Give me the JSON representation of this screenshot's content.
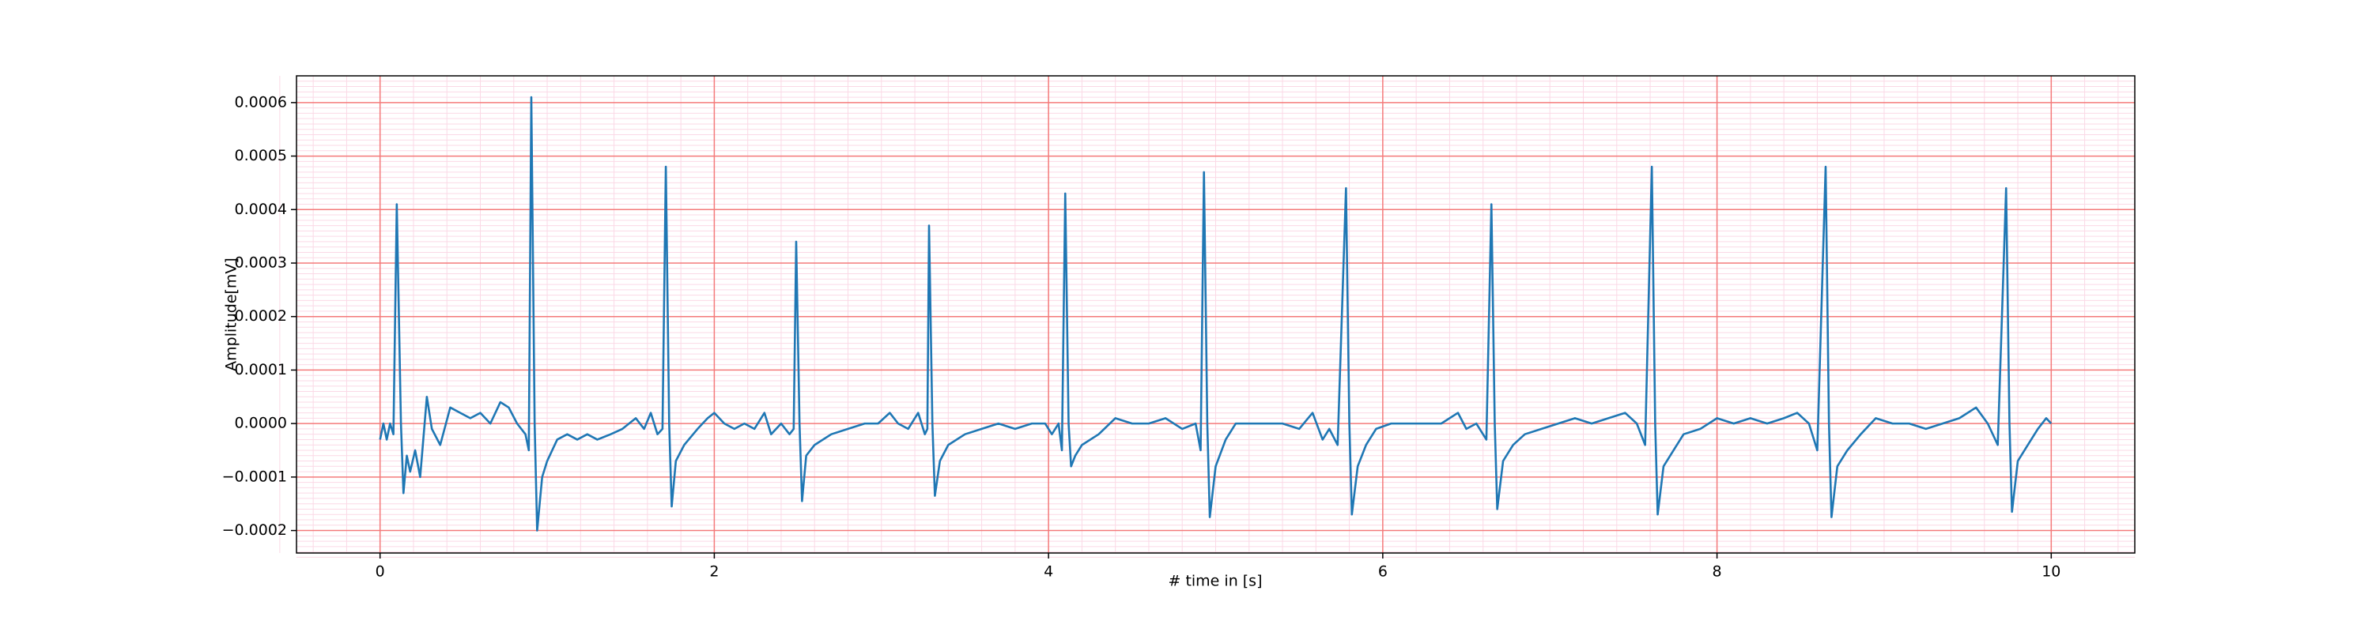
{
  "chart_data": {
    "type": "line",
    "xlabel": "# time in [s]",
    "ylabel": "Amplitude[mV]",
    "xlim": [
      -0.5,
      10.5
    ],
    "ylim": [
      -0.000242,
      0.00065
    ],
    "xticks": [
      0,
      2,
      4,
      6,
      8,
      10
    ],
    "yticks": [
      {
        "value": -0.0002,
        "label": "−0.0002"
      },
      {
        "value": -0.0001,
        "label": "−0.0001"
      },
      {
        "value": 0,
        "label": "0.0000"
      },
      0.0001,
      0.0002,
      0.0003,
      0.0004,
      0.0005,
      0.0006
    ],
    "grid": true,
    "minor_grid": true,
    "grid_color": "#f47a7a",
    "minor_grid_color": "#fbd9e6",
    "x": [
      0.0,
      0.02,
      0.04,
      0.06,
      0.08,
      0.1,
      0.125,
      0.14,
      0.16,
      0.18,
      0.21,
      0.24,
      0.28,
      0.31,
      0.36,
      0.42,
      0.48,
      0.54,
      0.6,
      0.66,
      0.72,
      0.77,
      0.82,
      0.87,
      0.89,
      0.905,
      0.925,
      0.94,
      0.97,
      1.0,
      1.06,
      1.12,
      1.18,
      1.24,
      1.3,
      1.38,
      1.45,
      1.53,
      1.58,
      1.62,
      1.66,
      1.69,
      1.71,
      1.73,
      1.745,
      1.77,
      1.82,
      1.9,
      1.96,
      2.0,
      2.06,
      2.12,
      2.18,
      2.24,
      2.3,
      2.34,
      2.4,
      2.45,
      2.475,
      2.49,
      2.51,
      2.525,
      2.55,
      2.6,
      2.7,
      2.8,
      2.9,
      2.98,
      3.05,
      3.1,
      3.16,
      3.22,
      3.26,
      3.275,
      3.285,
      3.305,
      3.32,
      3.35,
      3.4,
      3.5,
      3.6,
      3.7,
      3.8,
      3.9,
      3.98,
      4.02,
      4.06,
      4.08,
      4.1,
      4.12,
      4.135,
      4.16,
      4.2,
      4.3,
      4.4,
      4.5,
      4.6,
      4.7,
      4.8,
      4.88,
      4.91,
      4.93,
      4.95,
      4.965,
      5.0,
      5.06,
      5.12,
      5.2,
      5.3,
      5.4,
      5.5,
      5.58,
      5.64,
      5.68,
      5.73,
      5.78,
      5.8,
      5.815,
      5.85,
      5.9,
      5.96,
      6.05,
      6.15,
      6.25,
      6.35,
      6.45,
      6.5,
      6.56,
      6.62,
      6.65,
      6.67,
      6.685,
      6.72,
      6.78,
      6.85,
      6.95,
      7.05,
      7.15,
      7.25,
      7.35,
      7.45,
      7.52,
      7.57,
      7.61,
      7.63,
      7.645,
      7.68,
      7.74,
      7.8,
      7.9,
      8.0,
      8.1,
      8.2,
      8.3,
      8.4,
      8.48,
      8.55,
      8.6,
      8.65,
      8.67,
      8.685,
      8.72,
      8.78,
      8.86,
      8.95,
      9.05,
      9.15,
      9.25,
      9.35,
      9.45,
      9.55,
      9.62,
      9.68,
      9.73,
      9.75,
      9.765,
      9.8,
      9.86,
      9.92,
      9.97,
      10.0
    ],
    "series": [
      {
        "color": "#1f77b4",
        "values": [
          -3e-05,
          0.0,
          -3e-05,
          0.0,
          -2e-05,
          0.00041,
          0.0,
          -0.00013,
          -6e-05,
          -9e-05,
          -5e-05,
          -0.0001,
          5e-05,
          -1e-05,
          -4e-05,
          3e-05,
          2e-05,
          1e-05,
          2e-05,
          0.0,
          4e-05,
          3e-05,
          0.0,
          -2e-05,
          -5e-05,
          0.00061,
          0.0,
          -0.0002,
          -0.0001,
          -7e-05,
          -3e-05,
          -2e-05,
          -3e-05,
          -2e-05,
          -3e-05,
          -2e-05,
          -1e-05,
          1e-05,
          -1e-05,
          2e-05,
          -2e-05,
          -1e-05,
          0.00048,
          0.0,
          -0.000155,
          -7e-05,
          -4e-05,
          -1e-05,
          1e-05,
          2e-05,
          0.0,
          -1e-05,
          0.0,
          -1e-05,
          2e-05,
          -2e-05,
          0.0,
          -2e-05,
          -1e-05,
          0.00034,
          0.0,
          -0.000145,
          -6e-05,
          -4e-05,
          -2e-05,
          -1e-05,
          0.0,
          0.0,
          2e-05,
          0.0,
          -1e-05,
          2e-05,
          -2e-05,
          -1e-05,
          0.00037,
          0.0,
          -0.000135,
          -7e-05,
          -4e-05,
          -2e-05,
          -1e-05,
          0.0,
          -1e-05,
          0.0,
          0.0,
          -2e-05,
          0.0,
          -5e-05,
          0.00043,
          0.0,
          -8e-05,
          -6e-05,
          -4e-05,
          -2e-05,
          1e-05,
          0.0,
          0.0,
          1e-05,
          -1e-05,
          0.0,
          -5e-05,
          0.00047,
          0.0,
          -0.000175,
          -8e-05,
          -3e-05,
          0.0,
          0.0,
          0.0,
          0.0,
          -1e-05,
          2e-05,
          -3e-05,
          -1e-05,
          -4e-05,
          0.00044,
          0.0,
          -0.00017,
          -8e-05,
          -4e-05,
          -1e-05,
          0.0,
          0.0,
          0.0,
          0.0,
          2e-05,
          -1e-05,
          0.0,
          -3e-05,
          0.00041,
          0.0,
          -0.00016,
          -7e-05,
          -4e-05,
          -2e-05,
          -1e-05,
          0.0,
          1e-05,
          0.0,
          1e-05,
          2e-05,
          0.0,
          -4e-05,
          0.00048,
          0.0,
          -0.00017,
          -8e-05,
          -5e-05,
          -2e-05,
          -1e-05,
          1e-05,
          0.0,
          1e-05,
          0.0,
          1e-05,
          2e-05,
          0.0,
          -5e-05,
          0.00048,
          0.0,
          -0.000175,
          -8e-05,
          -5e-05,
          -2e-05,
          1e-05,
          0.0,
          0.0,
          -1e-05,
          0.0,
          1e-05,
          3e-05,
          0.0,
          -4e-05,
          0.00044,
          0.0,
          -0.000165,
          -7e-05,
          -4e-05,
          -1e-05,
          1e-05,
          0.0
        ]
      }
    ]
  }
}
